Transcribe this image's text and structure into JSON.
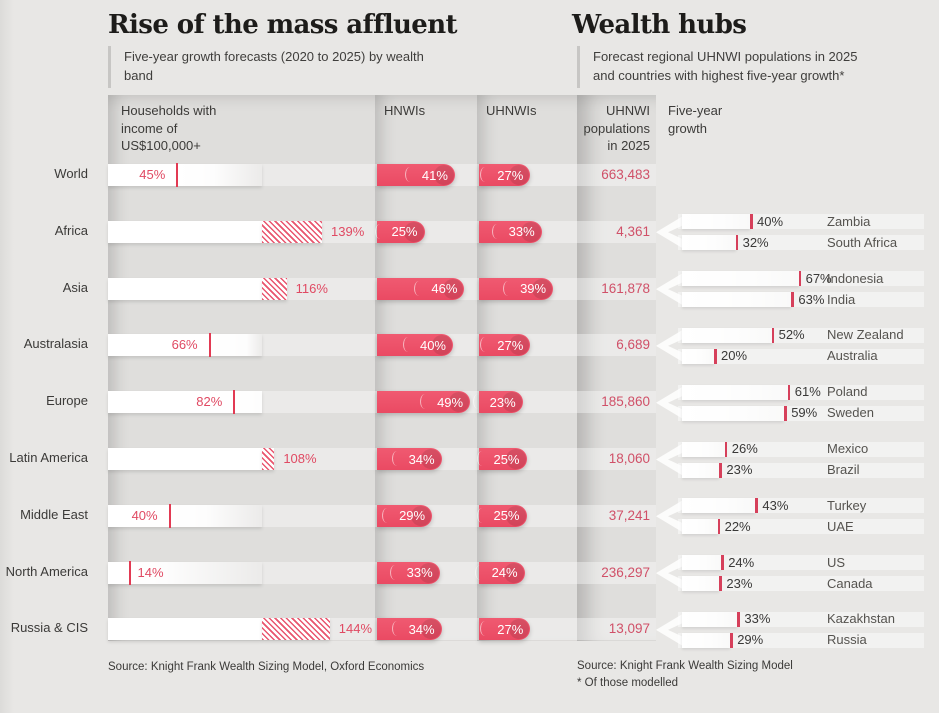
{
  "left_panel": {
    "title": "Rise of the mass affluent",
    "subtitle": "Five-year growth forecasts (2020 to 2025) by wealth band",
    "col_households": "Households with\nincome of\nUS$100,000+",
    "col_hnwis": "HNWIs",
    "col_uhnwis": "UHNWIs",
    "source": "Source: Knight Frank Wealth Sizing Model, Oxford Economics"
  },
  "right_panel": {
    "title": "Wealth hubs",
    "subtitle": "Forecast regional UHNWI populations in 2025\nand countries with highest five-year growth*",
    "col_population": "UHNWI\npopulations\nin 2025",
    "col_growth": "Five-year\ngrowth",
    "source": "Source: Knight Frank Wealth Sizing Model\n* Of those modelled"
  },
  "colors": {
    "accent_red": "#ee4f68",
    "tick_red": "#e23a53",
    "population_red": "#d05068",
    "background": "#e8e7e5",
    "column_band": "#dfdedc"
  },
  "chart_data": {
    "type": "bar",
    "title": "Rise of the mass affluent / Wealth hubs",
    "value_unit": "percent five-year growth (2020 to 2025)",
    "series_labels": [
      "Households with income of US$100,000+",
      "HNWIs",
      "UHNWIs"
    ],
    "right_columns": [
      "UHNWI populations in 2025",
      "Five-year growth"
    ],
    "households_axis_max_pct": 100,
    "regions": [
      {
        "name": "World",
        "households_growth_pct": 45,
        "hnwi_growth_pct": 41,
        "uhnwi_growth_pct": 27,
        "uhnwi_population_2025": "663,483",
        "countries": []
      },
      {
        "name": "Africa",
        "households_growth_pct": 139,
        "hnwi_growth_pct": 25,
        "uhnwi_growth_pct": 33,
        "uhnwi_population_2025": "4,361",
        "countries": [
          {
            "name": "Zambia",
            "growth_pct": 40
          },
          {
            "name": "South Africa",
            "growth_pct": 32
          }
        ]
      },
      {
        "name": "Asia",
        "households_growth_pct": 116,
        "hnwi_growth_pct": 46,
        "uhnwi_growth_pct": 39,
        "uhnwi_population_2025": "161,878",
        "countries": [
          {
            "name": "Indonesia",
            "growth_pct": 67
          },
          {
            "name": "India",
            "growth_pct": 63
          }
        ]
      },
      {
        "name": "Australasia",
        "households_growth_pct": 66,
        "hnwi_growth_pct": 40,
        "uhnwi_growth_pct": 27,
        "uhnwi_population_2025": "6,689",
        "countries": [
          {
            "name": "New Zealand",
            "growth_pct": 52
          },
          {
            "name": "Australia",
            "growth_pct": 20
          }
        ]
      },
      {
        "name": "Europe",
        "households_growth_pct": 82,
        "hnwi_growth_pct": 49,
        "uhnwi_growth_pct": 23,
        "uhnwi_population_2025": "185,860",
        "countries": [
          {
            "name": "Poland",
            "growth_pct": 61
          },
          {
            "name": "Sweden",
            "growth_pct": 59
          }
        ]
      },
      {
        "name": "Latin America",
        "households_growth_pct": 108,
        "hnwi_growth_pct": 34,
        "uhnwi_growth_pct": 25,
        "uhnwi_population_2025": "18,060",
        "countries": [
          {
            "name": "Mexico",
            "growth_pct": 26
          },
          {
            "name": "Brazil",
            "growth_pct": 23
          }
        ]
      },
      {
        "name": "Middle East",
        "households_growth_pct": 40,
        "hnwi_growth_pct": 29,
        "uhnwi_growth_pct": 25,
        "uhnwi_population_2025": "37,241",
        "countries": [
          {
            "name": "Turkey",
            "growth_pct": 43
          },
          {
            "name": "UAE",
            "growth_pct": 22
          }
        ]
      },
      {
        "name": "North America",
        "households_growth_pct": 14,
        "hnwi_growth_pct": 33,
        "uhnwi_growth_pct": 24,
        "uhnwi_population_2025": "236,297",
        "countries": [
          {
            "name": "US",
            "growth_pct": 24
          },
          {
            "name": "Canada",
            "growth_pct": 23
          }
        ]
      },
      {
        "name": "Russia & CIS",
        "households_growth_pct": 144,
        "hnwi_growth_pct": 34,
        "uhnwi_growth_pct": 27,
        "uhnwi_population_2025": "13,097",
        "countries": [
          {
            "name": "Kazakhstan",
            "growth_pct": 33
          },
          {
            "name": "Russia",
            "growth_pct": 29
          }
        ]
      }
    ]
  }
}
